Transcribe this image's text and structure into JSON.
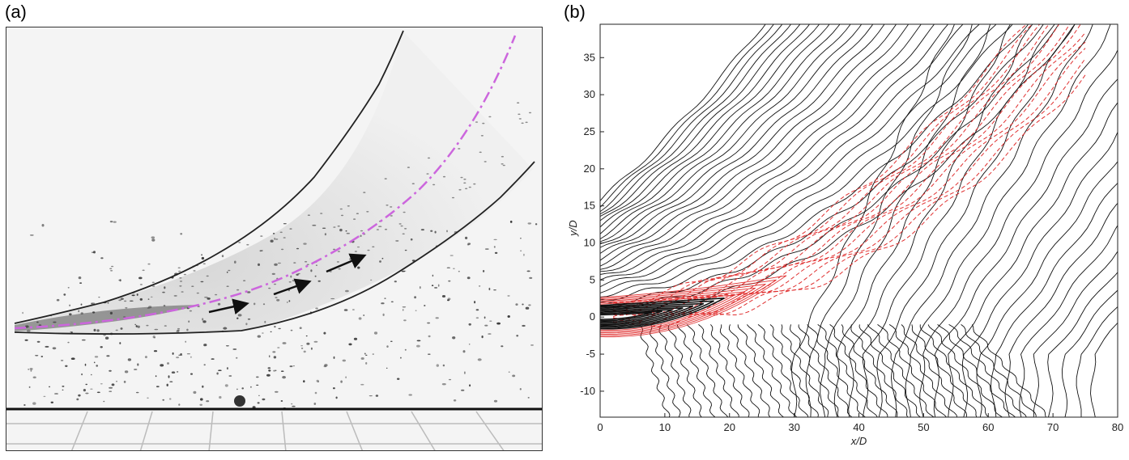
{
  "figure": {
    "panel_a_label": "(a)",
    "panel_b_label": "(b)"
  },
  "colors": {
    "trajectory_line": "#cc66dd",
    "contour_solid": "#111111",
    "contour_dashed": "#e03030"
  },
  "chart_data": {
    "type": "contour",
    "xlabel": "x/D",
    "ylabel": "y/D",
    "xlim": [
      0,
      80
    ],
    "ylim": [
      -13.5,
      39.5
    ],
    "x_ticks": [
      0,
      10,
      20,
      30,
      40,
      50,
      60,
      70,
      80
    ],
    "y_ticks": [
      -10,
      -5,
      0,
      5,
      10,
      15,
      20,
      25,
      30,
      35
    ],
    "grid": false
  }
}
